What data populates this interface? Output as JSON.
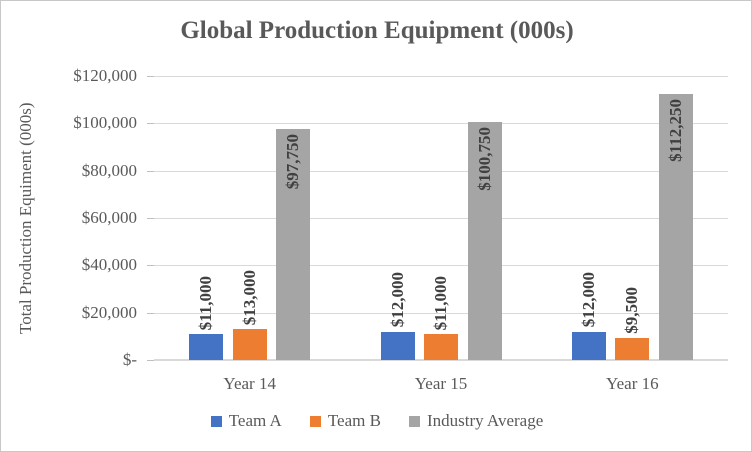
{
  "chart_data": {
    "type": "bar",
    "title": "Global Production Equipment (000s)",
    "ylabel": "Total Production Equiment (000s)",
    "xlabel": "",
    "categories": [
      "Year 14",
      "Year 15",
      "Year 16"
    ],
    "series": [
      {
        "name": "Team A",
        "color": "#4472C4",
        "values": [
          11000,
          12000,
          12000
        ],
        "data_labels": [
          "$11,000",
          "$12,000",
          "$12,000"
        ],
        "label_placement": "outside-end"
      },
      {
        "name": "Team B",
        "color": "#ED7D31",
        "values": [
          13000,
          11000,
          9500
        ],
        "data_labels": [
          "$13,000",
          "$11,000",
          "$9,500"
        ],
        "label_placement": "outside-end"
      },
      {
        "name": "Industry Average",
        "color": "#A5A5A5",
        "values": [
          97750,
          100750,
          112250
        ],
        "data_labels": [
          "$97,750",
          "$100,750",
          "$112,250"
        ],
        "label_placement": "inside-end"
      }
    ],
    "y_axis": {
      "min": 0,
      "max": 120000,
      "step": 20000,
      "tick_labels_top_to_bottom": [
        "$120,000",
        "$100,000",
        "$80,000",
        "$60,000",
        "$40,000",
        "$20,000",
        "$-"
      ]
    },
    "ylim": [
      0,
      120000
    ],
    "gridlines": true,
    "legend_position": "bottom",
    "colors": {
      "gridline": "#d9d9d9",
      "axis_line": "#d9d9d9",
      "tick_mark": "#bfbfbf",
      "axis_text": "#595959",
      "title_text": "#595959",
      "data_label_text": "#404040",
      "frame_border": "#c8c8c8",
      "background": "#ffffff"
    }
  }
}
